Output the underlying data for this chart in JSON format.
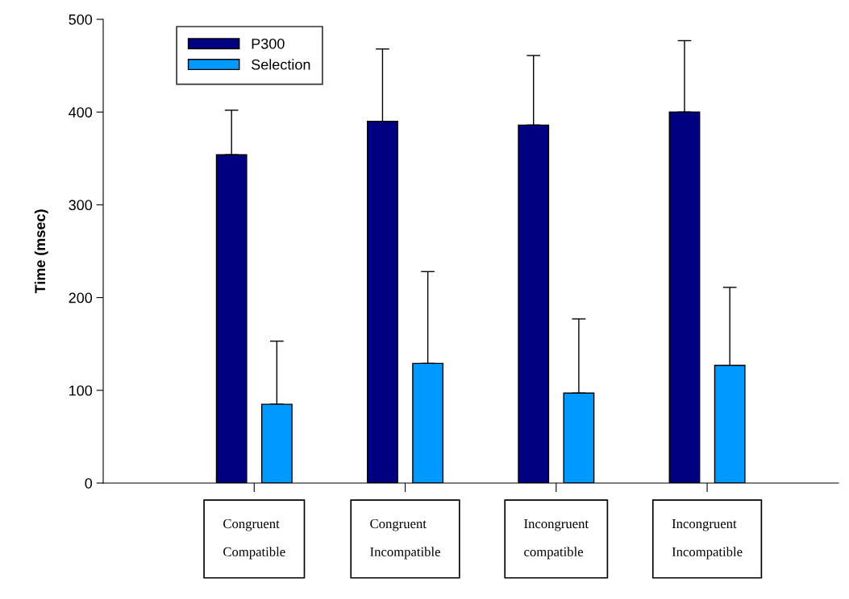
{
  "chart_data": {
    "type": "bar",
    "ylabel": "Time (msec)",
    "categories": [
      "Congruent\n\nCompatible",
      "Congruent\n\nIncompatible",
      "Incongruent\n\ncompatible",
      "Incongruent\n\nIncompatible"
    ],
    "series": [
      {
        "name": "P300",
        "color": "#000080",
        "values": [
          354,
          390,
          386,
          400
        ],
        "errors": [
          [
            354,
            402
          ],
          [
            390,
            468
          ],
          [
            386,
            461
          ],
          [
            400,
            477
          ]
        ]
      },
      {
        "name": "Selection",
        "color": "#0099ff",
        "values": [
          85,
          129,
          97,
          127
        ],
        "errors": [
          [
            85,
            153
          ],
          [
            129,
            228
          ],
          [
            97,
            177
          ],
          [
            127,
            211
          ]
        ]
      }
    ],
    "ylim": [
      0,
      500
    ],
    "yticks": [
      0,
      100,
      200,
      300,
      400,
      500
    ],
    "grid": false,
    "legend": "top left"
  }
}
